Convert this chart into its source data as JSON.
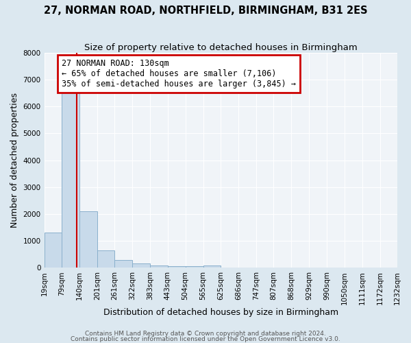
{
  "title": "27, NORMAN ROAD, NORTHFIELD, BIRMINGHAM, B31 2ES",
  "subtitle": "Size of property relative to detached houses in Birmingham",
  "xlabel": "Distribution of detached houses by size in Birmingham",
  "ylabel": "Number of detached properties",
  "bar_color": "#c8daea",
  "bar_edge_color": "#8ab0cc",
  "figure_bg_color": "#dce8f0",
  "axes_bg_color": "#f0f4f8",
  "grid_color": "white",
  "red_line_x": 130,
  "annotation_title": "27 NORMAN ROAD: 130sqm",
  "annotation_line1": "← 65% of detached houses are smaller (7,106)",
  "annotation_line2": "35% of semi-detached houses are larger (3,845) →",
  "annotation_box_color": "#cc0000",
  "ylim": [
    0,
    8000
  ],
  "yticks": [
    0,
    1000,
    2000,
    3000,
    4000,
    5000,
    6000,
    7000,
    8000
  ],
  "bin_edges": [
    19,
    79,
    140,
    201,
    261,
    322,
    383,
    443,
    504,
    565,
    625,
    686,
    747,
    807,
    868,
    929,
    990,
    1050,
    1111,
    1172,
    1232
  ],
  "bar_heights": [
    1300,
    6600,
    2100,
    650,
    300,
    150,
    80,
    50,
    50,
    80,
    0,
    0,
    0,
    0,
    0,
    0,
    0,
    0,
    0,
    0
  ],
  "footer1": "Contains HM Land Registry data © Crown copyright and database right 2024.",
  "footer2": "Contains public sector information licensed under the Open Government Licence v3.0.",
  "title_fontsize": 10.5,
  "subtitle_fontsize": 9.5,
  "axis_label_fontsize": 9,
  "tick_fontsize": 7.5,
  "footer_fontsize": 6.5,
  "annotation_fontsize": 8.5
}
